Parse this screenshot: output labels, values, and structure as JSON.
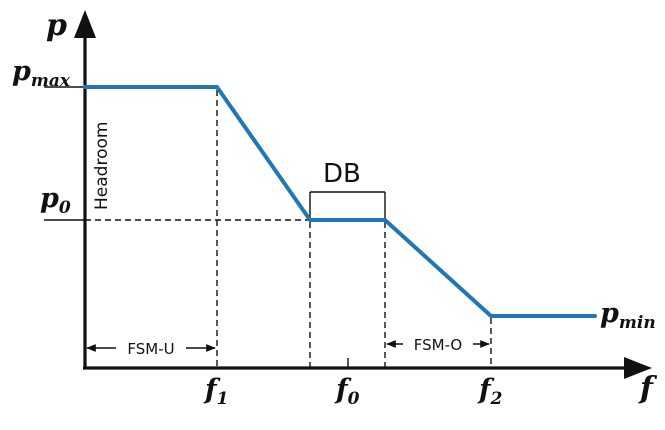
{
  "axes": {
    "y_label": "p",
    "x_label": "f"
  },
  "y_ticks": {
    "pmax": {
      "base": "p",
      "sub": "max"
    },
    "p0": {
      "base": "p",
      "sub": "0"
    }
  },
  "x_ticks": {
    "f1": {
      "base": "f",
      "sub": "1"
    },
    "f0": {
      "base": "f",
      "sub": "0"
    },
    "f2": {
      "base": "f",
      "sub": "2"
    }
  },
  "annotations": {
    "headroom": "Headroom",
    "db": "DB",
    "fsm_u": "FSM-U",
    "fsm_o": "FSM-O",
    "pmin": {
      "base": "p",
      "sub": "min"
    }
  },
  "colors": {
    "curve": "#1f77b4",
    "ink": "#111111"
  }
}
